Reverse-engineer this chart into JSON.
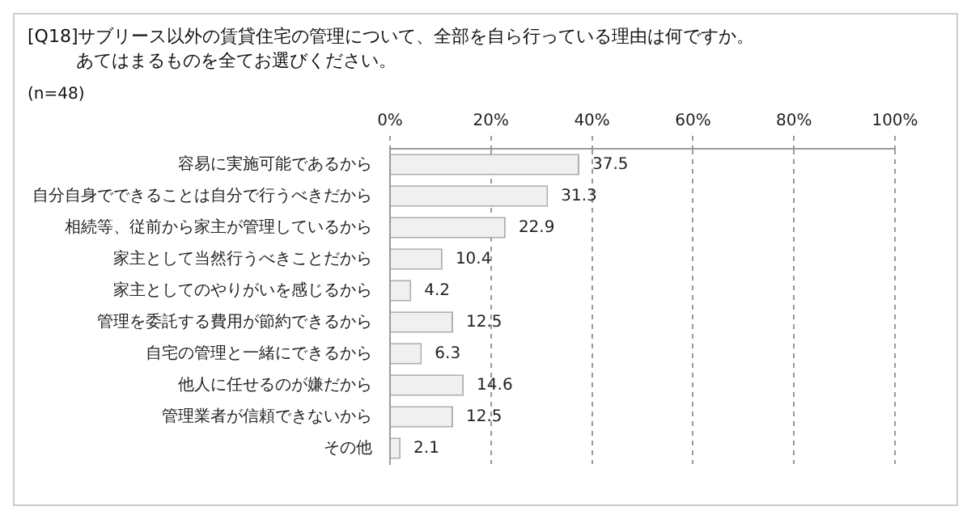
{
  "chart_data": {
    "type": "bar",
    "orientation": "horizontal",
    "title": "[Q18]サブリース以外の賃貸住宅の管理について、全部を自ら行っている理由は何ですか。",
    "subtitle": "あてはまるものを全てお選びください。",
    "annotations": [
      "(n=48)"
    ],
    "categories": [
      "容易に実施可能であるから",
      "自分自身でできることは自分で行うべきだから",
      "相続等、従前から家主が管理しているから",
      "家主として当然行うべきことだから",
      "家主としてのやりがいを感じるから",
      "管理を委託する費用が節約できるから",
      "自宅の管理と一緒にできるから",
      "他人に任せるのが嫌だから",
      "管理業者が信頼できないから",
      "その他"
    ],
    "values": [
      37.5,
      31.3,
      22.9,
      10.4,
      4.2,
      12.5,
      6.3,
      14.6,
      12.5,
      2.1
    ],
    "color": "#f0f0f0",
    "data_labels": true,
    "grid": "x",
    "xlim": [
      0,
      100
    ],
    "xticks": [
      {
        "value": 0,
        "label": "0%"
      },
      {
        "value": 20,
        "label": "20%"
      },
      {
        "value": 40,
        "label": "40%"
      },
      {
        "value": 60,
        "label": "60%"
      },
      {
        "value": 80,
        "label": "80%"
      },
      {
        "value": 100,
        "label": "100%"
      }
    ]
  }
}
